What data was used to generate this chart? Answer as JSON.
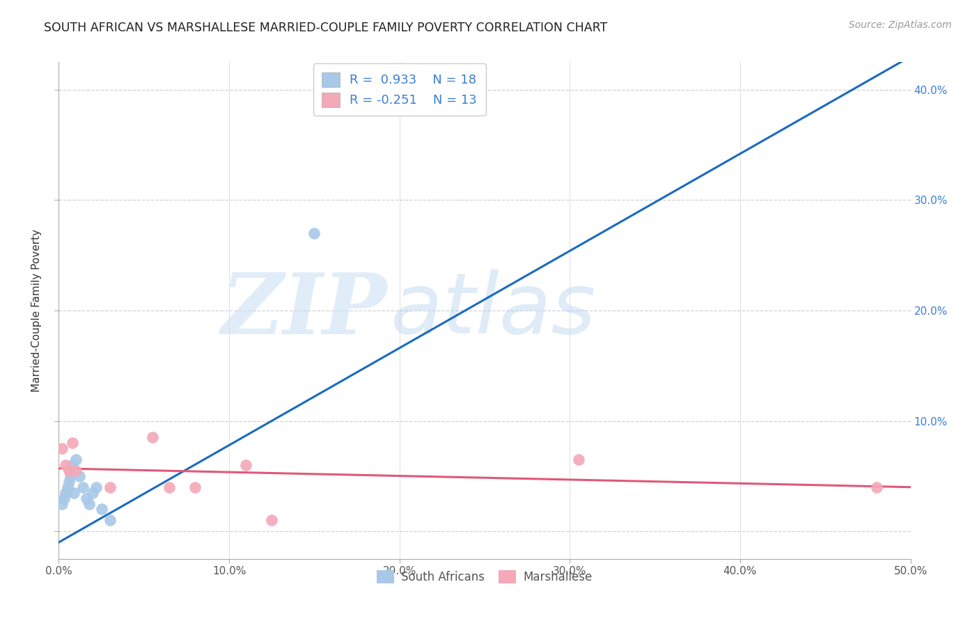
{
  "title": "SOUTH AFRICAN VS MARSHALLESE MARRIED-COUPLE FAMILY POVERTY CORRELATION CHART",
  "source": "Source: ZipAtlas.com",
  "ylabel": "Married-Couple Family Poverty",
  "xlabel": "",
  "xlim": [
    0.0,
    0.5
  ],
  "ylim": [
    -0.025,
    0.425
  ],
  "xticks": [
    0.0,
    0.1,
    0.2,
    0.3,
    0.4,
    0.5
  ],
  "yticks": [
    0.0,
    0.1,
    0.2,
    0.3,
    0.4
  ],
  "xtick_labels": [
    "0.0%",
    "10.0%",
    "20.0%",
    "30.0%",
    "40.0%",
    "50.0%"
  ],
  "ytick_labels_right": [
    "",
    "10.0%",
    "20.0%",
    "30.0%",
    "40.0%"
  ],
  "background_color": "#ffffff",
  "plot_bg_color": "#ffffff",
  "grid_color": "#d0d0d0",
  "south_african_color": "#a8c8e8",
  "marshallese_color": "#f4a8b8",
  "south_african_line_color": "#1a6abf",
  "marshallese_line_color": "#e05878",
  "south_african_R": 0.933,
  "south_african_N": 18,
  "marshallese_R": -0.251,
  "marshallese_N": 13,
  "legend_label_1": "South Africans",
  "legend_label_2": "Marshallese",
  "watermark_zip": "ZIP",
  "watermark_atlas": "atlas",
  "sa_x": [
    0.002,
    0.003,
    0.004,
    0.005,
    0.006,
    0.007,
    0.008,
    0.009,
    0.01,
    0.012,
    0.014,
    0.016,
    0.018,
    0.02,
    0.022,
    0.025,
    0.03,
    0.15
  ],
  "sa_y": [
    0.025,
    0.03,
    0.035,
    0.04,
    0.045,
    0.05,
    0.06,
    0.035,
    0.065,
    0.05,
    0.04,
    0.03,
    0.025,
    0.035,
    0.04,
    0.02,
    0.01,
    0.27
  ],
  "ma_x": [
    0.002,
    0.004,
    0.006,
    0.008,
    0.01,
    0.03,
    0.055,
    0.065,
    0.08,
    0.11,
    0.125,
    0.305,
    0.48
  ],
  "ma_y": [
    0.075,
    0.06,
    0.055,
    0.08,
    0.055,
    0.04,
    0.085,
    0.04,
    0.04,
    0.06,
    0.01,
    0.065,
    0.04
  ],
  "sa_line_x": [
    0.0,
    0.5
  ],
  "sa_line_y": [
    -0.01,
    0.43
  ],
  "ma_line_x": [
    0.0,
    0.5
  ],
  "ma_line_y": [
    0.057,
    0.04
  ]
}
